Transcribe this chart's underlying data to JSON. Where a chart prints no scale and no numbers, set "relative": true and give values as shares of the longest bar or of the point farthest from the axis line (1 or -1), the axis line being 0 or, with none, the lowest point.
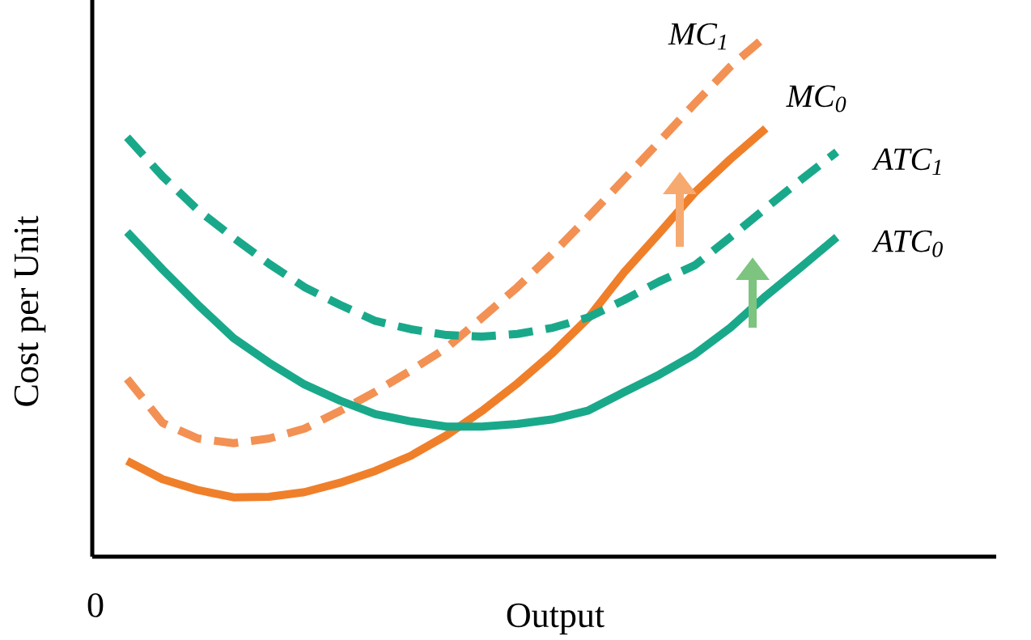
{
  "chart_data": {
    "type": "line",
    "relative": true,
    "legend": false,
    "xlabel": "Output",
    "ylabel": "Cost per Unit",
    "annotations": [
      "0"
    ],
    "categories": [
      null,
      null,
      null,
      null,
      null,
      null,
      null,
      null,
      null,
      null,
      null,
      null,
      null,
      null,
      null,
      null,
      null,
      null,
      null,
      null,
      null
    ],
    "series": [
      {
        "name": "MC$_{1}$",
        "color": "#f29153",
        "line_style": "dashed",
        "values": [
          0.342,
          0.257,
          0.227,
          0.218,
          0.227,
          0.246,
          0.28,
          0.317,
          0.358,
          0.401,
          0.459,
          0.518,
          0.583,
          0.653,
          0.725,
          0.798,
          0.871,
          0.942,
          1.0,
          null,
          null
        ]
      },
      {
        "name": "MC$_{0}$",
        "color": "#f07f2a",
        "line_style": "solid",
        "values": [
          0.184,
          0.149,
          0.128,
          0.114,
          0.115,
          0.124,
          0.142,
          0.165,
          0.194,
          0.233,
          0.28,
          0.333,
          0.392,
          0.459,
          0.546,
          0.622,
          0.7,
          0.764,
          0.823,
          null,
          null
        ]
      },
      {
        "name": "ATC$_{1}$",
        "color": "#19a98a",
        "line_style": "dashed",
        "values": [
          0.806,
          0.731,
          0.666,
          0.613,
          0.563,
          0.518,
          0.484,
          0.453,
          0.437,
          0.426,
          0.423,
          0.428,
          0.44,
          0.46,
          0.493,
          0.529,
          0.56,
          0.614,
          0.67,
          0.725,
          0.778
        ]
      },
      {
        "name": "ATC$_{0}$",
        "color": "#19a98a",
        "line_style": "solid",
        "values": [
          0.624,
          0.552,
          0.484,
          0.42,
          0.373,
          0.331,
          0.3,
          0.274,
          0.26,
          0.25,
          0.25,
          0.255,
          0.264,
          0.281,
          0.316,
          0.35,
          0.389,
          0.44,
          0.501,
          0.557,
          0.614
        ]
      }
    ]
  }
}
